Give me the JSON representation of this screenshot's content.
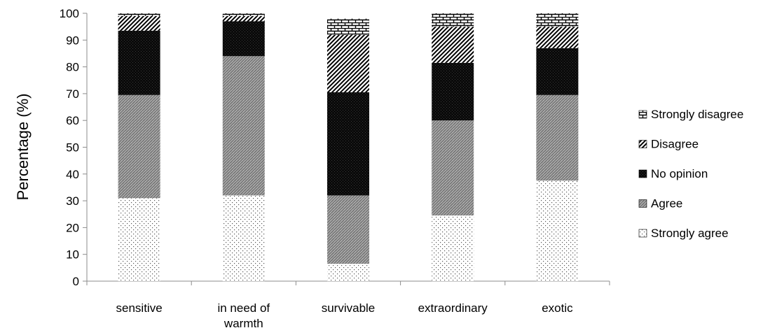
{
  "chart_data": {
    "type": "bar",
    "stacked": true,
    "title": "",
    "xlabel": "",
    "ylabel": "Percentage (%)",
    "ylim": [
      0,
      100
    ],
    "yticks": [
      0,
      10,
      20,
      30,
      40,
      50,
      60,
      70,
      80,
      90,
      100
    ],
    "grid": false,
    "legend_position": "right",
    "categories": [
      [
        "sensitive"
      ],
      [
        "in need of",
        "warmth"
      ],
      [
        "survivable"
      ],
      [
        "extraordinary"
      ],
      [
        "exotic"
      ]
    ],
    "series": [
      {
        "name": "Strongly agree",
        "pattern": "dots",
        "values": [
          31,
          32,
          6.5,
          24.5,
          37.5
        ]
      },
      {
        "name": "Agree",
        "pattern": "crosshatch",
        "values": [
          38.5,
          52,
          25.5,
          35.5,
          32
        ]
      },
      {
        "name": "No opinion",
        "pattern": "dark",
        "values": [
          24,
          13,
          38.5,
          21.5,
          17.5
        ]
      },
      {
        "name": "Disagree",
        "pattern": "diagonal",
        "values": [
          5.5,
          2,
          21.5,
          13.5,
          8
        ]
      },
      {
        "name": "Strongly disagree",
        "pattern": "brick",
        "values": [
          1,
          1,
          6,
          5,
          5
        ]
      }
    ],
    "legend_order": [
      "Strongly disagree",
      "Disagree",
      "No opinion",
      "Agree",
      "Strongly agree"
    ]
  }
}
